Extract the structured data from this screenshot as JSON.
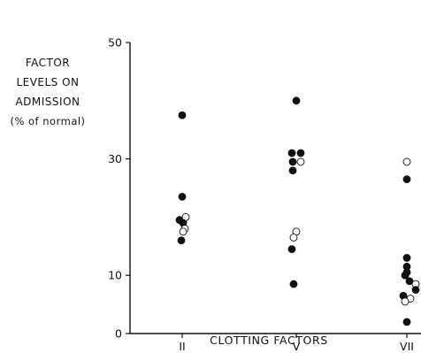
{
  "chart_data": {
    "type": "scatter",
    "title": "",
    "ylabel_lines": [
      "FACTOR",
      "LEVELS ON",
      "ADMISSION",
      "(% of normal)"
    ],
    "xlabel": "CLOTTING FACTORS",
    "categories": [
      "II",
      "V",
      "VII"
    ],
    "ylim": [
      0,
      50
    ],
    "yticks": [
      0,
      10,
      30,
      50
    ],
    "grid": false,
    "marker_colors": {
      "filled": "#111111",
      "open": "#ffffff"
    },
    "points": [
      {
        "x": "II",
        "y": 37.5,
        "filled": true
      },
      {
        "x": "II",
        "y": 23.5,
        "filled": true
      },
      {
        "x": "II",
        "y": 19.5,
        "filled": true
      },
      {
        "x": "II",
        "y": 20.0,
        "filled": false
      },
      {
        "x": "II",
        "y": 19.0,
        "filled": true
      },
      {
        "x": "II",
        "y": 18.0,
        "filled": false
      },
      {
        "x": "II",
        "y": 17.5,
        "filled": false
      },
      {
        "x": "II",
        "y": 16.0,
        "filled": true
      },
      {
        "x": "V",
        "y": 40.0,
        "filled": true
      },
      {
        "x": "V",
        "y": 31.0,
        "filled": true
      },
      {
        "x": "V",
        "y": 31.0,
        "filled": true
      },
      {
        "x": "V",
        "y": 29.5,
        "filled": true
      },
      {
        "x": "V",
        "y": 29.5,
        "filled": false
      },
      {
        "x": "V",
        "y": 28.0,
        "filled": true
      },
      {
        "x": "V",
        "y": 17.5,
        "filled": false
      },
      {
        "x": "V",
        "y": 16.5,
        "filled": false
      },
      {
        "x": "V",
        "y": 14.5,
        "filled": true
      },
      {
        "x": "V",
        "y": 8.5,
        "filled": true
      },
      {
        "x": "VII",
        "y": 29.5,
        "filled": false
      },
      {
        "x": "VII",
        "y": 26.5,
        "filled": true
      },
      {
        "x": "VII",
        "y": 13.0,
        "filled": true
      },
      {
        "x": "VII",
        "y": 11.5,
        "filled": true
      },
      {
        "x": "VII",
        "y": 10.5,
        "filled": true
      },
      {
        "x": "VII",
        "y": 10.0,
        "filled": true
      },
      {
        "x": "VII",
        "y": 9.0,
        "filled": true
      },
      {
        "x": "VII",
        "y": 8.5,
        "filled": false
      },
      {
        "x": "VII",
        "y": 7.5,
        "filled": true
      },
      {
        "x": "VII",
        "y": 6.5,
        "filled": true
      },
      {
        "x": "VII",
        "y": 6.0,
        "filled": false
      },
      {
        "x": "VII",
        "y": 5.5,
        "filled": false
      },
      {
        "x": "VII",
        "y": 2.0,
        "filled": true
      }
    ]
  }
}
